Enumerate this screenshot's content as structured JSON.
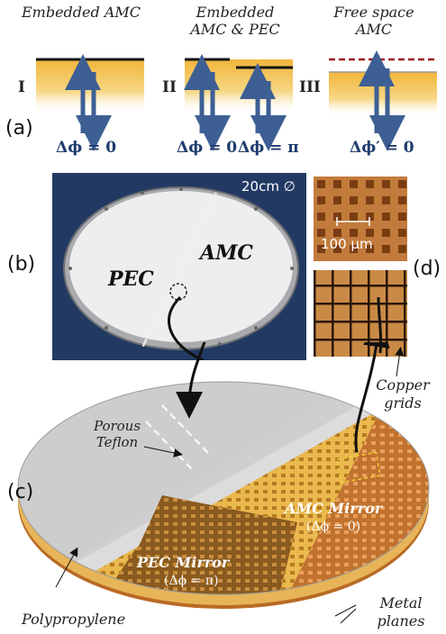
{
  "panel_a": {
    "label": "(a)",
    "columns": [
      {
        "title": "Embedded AMC",
        "roman": "I",
        "dphi": [
          "Δϕ = 0"
        ]
      },
      {
        "title": "Embedded AMC & PEC",
        "roman": "II",
        "dphi": [
          "Δϕ = 0",
          "Δϕ = π"
        ]
      },
      {
        "title": "Free space AMC",
        "roman": "III",
        "dphi": [
          "Δϕ′ = 0"
        ]
      }
    ]
  },
  "panel_b": {
    "label": "(b)",
    "diameter": "20cm ∅",
    "left_label": "PEC",
    "right_label": "AMC"
  },
  "panel_c": {
    "label": "(c)",
    "porous": "Porous Teflon",
    "amc_mirror": "AMC Mirror",
    "amc_phase": "(Δϕ = 0)",
    "pec_mirror": "PEC Mirror",
    "pec_phase": "(Δϕ = π)",
    "polypropylene": "Polypropylene",
    "metal_planes": "Metal planes",
    "copper_grids": "Copper grids"
  },
  "panel_d": {
    "label": "(d)",
    "scale": "100 μm"
  },
  "colors": {
    "navy": "#223a63",
    "gold": "#e8b23a",
    "copper": "#b9652a",
    "arrow_blue": "#3d5f94",
    "dashed_red": "#a01818"
  }
}
